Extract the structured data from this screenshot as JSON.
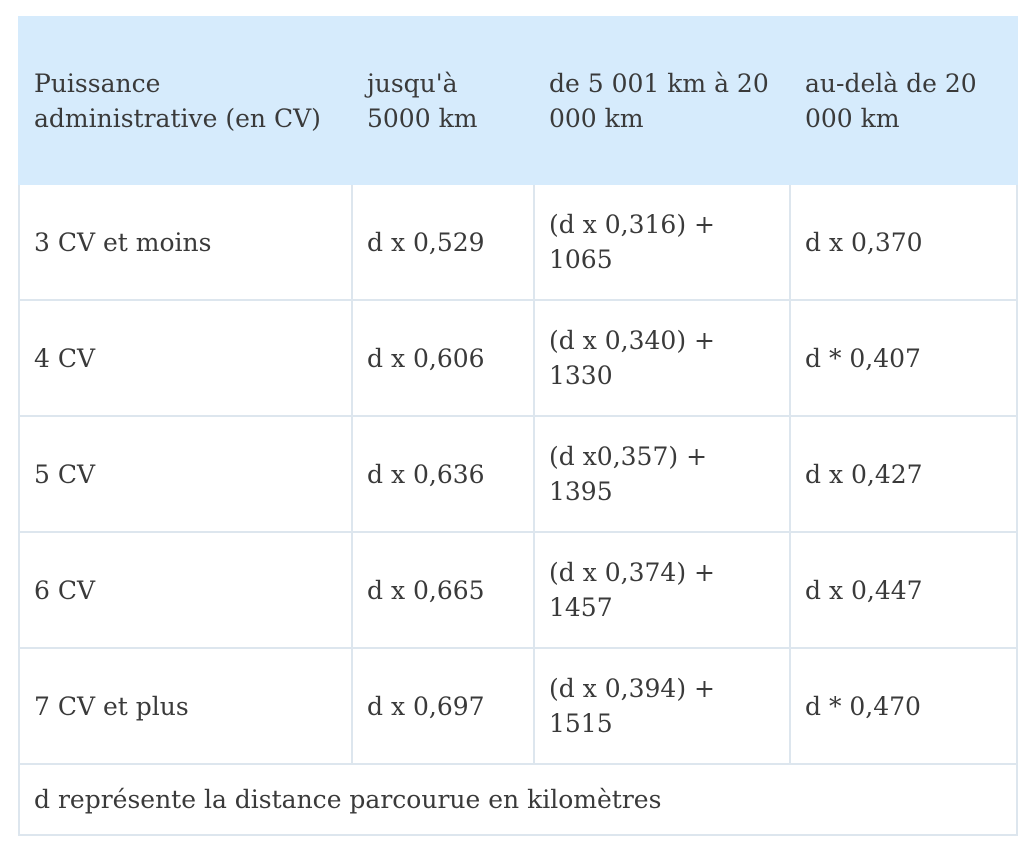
{
  "table": {
    "headers": [
      "Puissance administrative (en CV)",
      "jusqu'à 5000 km",
      "de 5 001 km à 20 000 km",
      "au-delà de 20 000 km"
    ],
    "rows": [
      [
        "3 CV et moins",
        "d x 0,529",
        "(d x 0,316) + 1065",
        "d x 0,370"
      ],
      [
        "4 CV",
        "d x 0,606",
        "(d x 0,340) + 1330",
        "d * 0,407"
      ],
      [
        "5 CV",
        "d x 0,636",
        "(d x0,357) + 1395",
        "d x 0,427"
      ],
      [
        "6 CV",
        "d x 0,665",
        "(d x 0,374) + 1457",
        "d x 0,447"
      ],
      [
        "7 CV et plus",
        "d x 0,697",
        "(d x 0,394) + 1515",
        "d * 0,470"
      ]
    ],
    "footnote": "d représente la distance parcourue en kilomètres"
  },
  "colors": {
    "header_bg": "#d6ebfc",
    "border": "#dde6ee",
    "text": "#3a3a3a"
  }
}
